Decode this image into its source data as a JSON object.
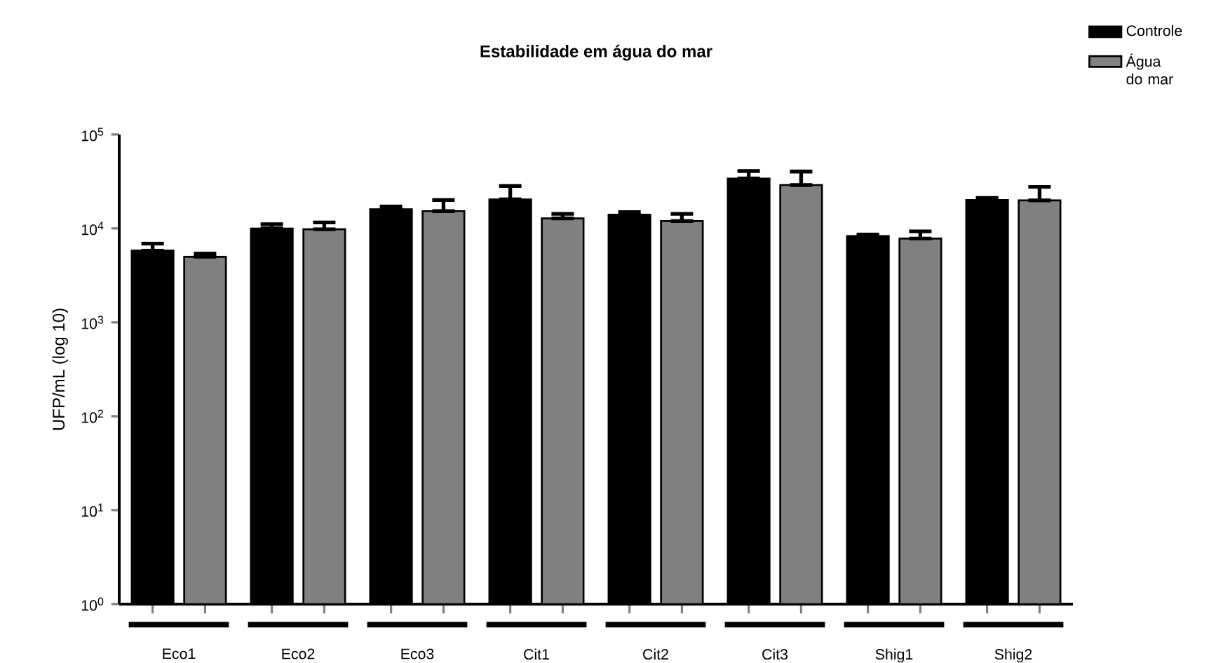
{
  "chart_data": {
    "type": "bar",
    "title": "Estabilidade em água do mar",
    "ylabel": "UFP/mL (log 10)",
    "categories": [
      "Eco1",
      "Eco2",
      "Eco3",
      "Cit1",
      "Cit2",
      "Cit3",
      "Shig1",
      "Shig2"
    ],
    "series": [
      {
        "name": "Controle",
        "color": "#000000",
        "values": [
          5800,
          10000,
          16000,
          20400,
          14000,
          34000,
          8300,
          20100
        ],
        "errors": [
          [
            5800,
            6900
          ],
          [
            10000,
            11100
          ],
          [
            16000,
            17100
          ],
          [
            20400,
            28300
          ],
          [
            14000,
            14900
          ],
          [
            34000,
            40900
          ],
          [
            8300,
            8600
          ],
          [
            20100,
            21100
          ]
        ]
      },
      {
        "name": "Água do mar",
        "color": "#808080",
        "values": [
          5000,
          9800,
          15300,
          12800,
          12000,
          29000,
          7800,
          19900
        ],
        "errors": [
          [
            5000,
            5400
          ],
          [
            9800,
            11600
          ],
          [
            15300,
            20100
          ],
          [
            12800,
            14300
          ],
          [
            12000,
            14300
          ],
          [
            29000,
            40400
          ],
          [
            7800,
            9300
          ],
          [
            19900,
            27700
          ]
        ]
      }
    ],
    "log": "y",
    "ylim": [
      1,
      100000
    ],
    "yticks": [
      {
        "value": 1,
        "label": "10$^{0}$"
      },
      {
        "value": 10,
        "label": "10$^{1}$"
      },
      {
        "value": 100,
        "label": "10$^{2}$"
      },
      {
        "value": 1000,
        "label": "10$^{3}$"
      },
      {
        "value": 10000,
        "label": "10$^{4}$"
      },
      {
        "value": 100000,
        "label": "10$^{5}$"
      }
    ],
    "legend": "top right",
    "grid": false
  }
}
